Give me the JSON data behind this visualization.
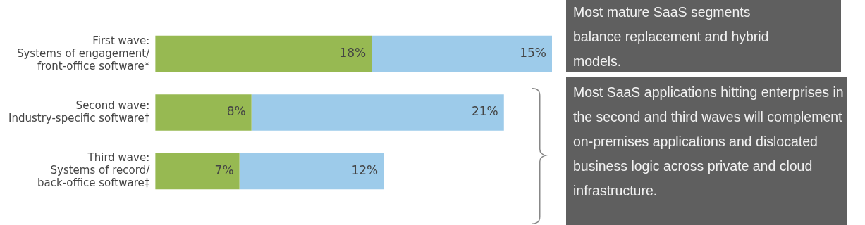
{
  "chart_data": {
    "type": "bar",
    "orientation": "horizontal",
    "stacked": true,
    "legend": false,
    "grid": false,
    "tick_labels": "y",
    "categories": [
      "First wave:\nSystems of engagement/\nfront-office software*",
      "Second wave:\nIndustry-specific software†",
      "Third wave:\nSystems of record/\nback-office software‡"
    ],
    "series": [
      {
        "color": "#97b952",
        "values": [
          18,
          8,
          7
        ],
        "value_labels": [
          "18%",
          "8%",
          "7%"
        ]
      },
      {
        "color": "#9dcbea",
        "values": [
          15,
          21,
          12
        ],
        "value_labels": [
          "15%",
          "21%",
          "12%"
        ]
      }
    ],
    "annotations": [
      "Most mature SaaS segments balance replacement and hybrid models.",
      "Most SaaS applications hitting enterprises in the second and third waves will complement on-premises applications and dislocated business logic across private and cloud infrastructure."
    ]
  }
}
